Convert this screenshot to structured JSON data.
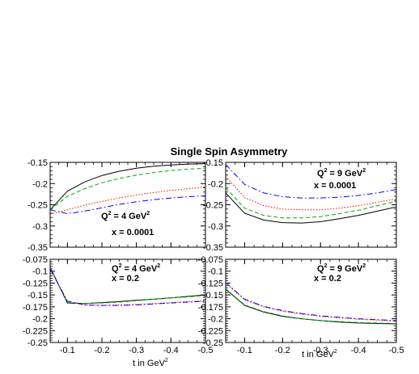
{
  "figure": {
    "title": "Single Spin Asymmetry",
    "xlabel": "t in GeV",
    "xlabel_sup": "2"
  },
  "chart_data": [
    {
      "type": "line",
      "annotation": {
        "line1": "Q",
        "sup": "2",
        "line1_rest": " = 4 GeV",
        "sup2": "2",
        "line2": "x = 0.0001"
      },
      "xlim": [
        -0.05,
        -0.5
      ],
      "ylim": [
        -0.35,
        -0.15
      ],
      "xticks": [],
      "yticks": [
        "-0.15",
        "-0.2",
        "-0.25",
        "-0.3",
        "-0.35"
      ],
      "ytick_values": [
        -0.15,
        -0.2,
        -0.25,
        -0.3,
        -0.35
      ],
      "series": [
        {
          "color": "#000000",
          "dash": "",
          "x": [
            -0.05,
            -0.1,
            -0.15,
            -0.2,
            -0.25,
            -0.3,
            -0.35,
            -0.4,
            -0.45,
            -0.5
          ],
          "y": [
            -0.262,
            -0.218,
            -0.196,
            -0.181,
            -0.171,
            -0.164,
            -0.159,
            -0.156,
            -0.154,
            -0.153
          ]
        },
        {
          "color": "#00aa00",
          "dash": "5,3",
          "x": [
            -0.05,
            -0.1,
            -0.15,
            -0.2,
            -0.25,
            -0.3,
            -0.35,
            -0.4,
            -0.45,
            -0.5
          ],
          "y": [
            -0.262,
            -0.23,
            -0.212,
            -0.198,
            -0.188,
            -0.18,
            -0.174,
            -0.169,
            -0.166,
            -0.164
          ]
        },
        {
          "color": "#ff0000",
          "dash": "1.5,2",
          "x": [
            -0.05,
            -0.1,
            -0.15,
            -0.2,
            -0.25,
            -0.3,
            -0.35,
            -0.4,
            -0.45,
            -0.5
          ],
          "y": [
            -0.272,
            -0.262,
            -0.251,
            -0.242,
            -0.234,
            -0.227,
            -0.221,
            -0.216,
            -0.212,
            -0.208
          ]
        },
        {
          "color": "#0000ff",
          "dash": "7,3,1.5,3",
          "x": [
            -0.05,
            -0.1,
            -0.15,
            -0.2,
            -0.25,
            -0.3,
            -0.35,
            -0.4,
            -0.45,
            -0.5
          ],
          "y": [
            -0.262,
            -0.271,
            -0.265,
            -0.257,
            -0.249,
            -0.243,
            -0.238,
            -0.234,
            -0.231,
            -0.229
          ]
        }
      ]
    },
    {
      "type": "line",
      "annotation": {
        "line1": "Q",
        "sup": "2",
        "line1_rest": " = 9 GeV",
        "sup2": "2",
        "line2": "x = 0.0001"
      },
      "xlim": [
        -0.05,
        -0.5
      ],
      "ylim": [
        -0.35,
        -0.15
      ],
      "xticks": [],
      "yticks": [
        "-0.15",
        "-0.2",
        "-0.25",
        "-0.3",
        "-0.35"
      ],
      "ytick_values": [
        -0.15,
        -0.2,
        -0.25,
        -0.3,
        -0.35
      ],
      "series": [
        {
          "color": "#000000",
          "dash": "",
          "x": [
            -0.05,
            -0.1,
            -0.15,
            -0.2,
            -0.25,
            -0.3,
            -0.35,
            -0.4,
            -0.45,
            -0.5
          ],
          "y": [
            -0.222,
            -0.27,
            -0.286,
            -0.292,
            -0.293,
            -0.29,
            -0.283,
            -0.275,
            -0.265,
            -0.255
          ]
        },
        {
          "color": "#00aa00",
          "dash": "5,3",
          "x": [
            -0.05,
            -0.1,
            -0.15,
            -0.2,
            -0.25,
            -0.3,
            -0.35,
            -0.4,
            -0.45,
            -0.5
          ],
          "y": [
            -0.21,
            -0.258,
            -0.275,
            -0.281,
            -0.281,
            -0.278,
            -0.271,
            -0.263,
            -0.252,
            -0.242
          ]
        },
        {
          "color": "#ff0000",
          "dash": "1.5,2",
          "x": [
            -0.05,
            -0.1,
            -0.15,
            -0.2,
            -0.25,
            -0.3,
            -0.35,
            -0.4,
            -0.45,
            -0.5
          ],
          "y": [
            -0.183,
            -0.233,
            -0.252,
            -0.26,
            -0.262,
            -0.262,
            -0.258,
            -0.252,
            -0.244,
            -0.236
          ]
        },
        {
          "color": "#0000ff",
          "dash": "7,3,1.5,3",
          "x": [
            -0.05,
            -0.1,
            -0.15,
            -0.2,
            -0.25,
            -0.3,
            -0.35,
            -0.4,
            -0.45,
            -0.5
          ],
          "y": [
            -0.155,
            -0.202,
            -0.222,
            -0.231,
            -0.234,
            -0.234,
            -0.232,
            -0.228,
            -0.222,
            -0.214
          ]
        }
      ]
    },
    {
      "type": "line",
      "annotation": {
        "line1": "Q",
        "sup": "2",
        "line1_rest": " = 4 GeV",
        "sup2": "2",
        "line2": "x = 0.2"
      },
      "xlim": [
        -0.05,
        -0.5
      ],
      "ylim": [
        -0.25,
        -0.075
      ],
      "xticks": [
        "-0.1",
        "-0.2",
        "-0.3",
        "-0.4",
        "-0.5"
      ],
      "xtick_values": [
        -0.1,
        -0.2,
        -0.3,
        -0.4,
        -0.5
      ],
      "yticks": [
        "-0.075",
        "-0.1",
        "-0.125",
        "-0.15",
        "-0.175",
        "-0.2",
        "-0.225",
        "-0.25"
      ],
      "ytick_values": [
        -0.075,
        -0.1,
        -0.125,
        -0.15,
        -0.175,
        -0.2,
        -0.225,
        -0.25
      ],
      "series": [
        {
          "color": "#000000",
          "dash": "",
          "x": [
            -0.05,
            -0.1,
            -0.15,
            -0.2,
            -0.25,
            -0.3,
            -0.35,
            -0.4,
            -0.45,
            -0.5
          ],
          "y": [
            -0.092,
            -0.167,
            -0.168,
            -0.166,
            -0.164,
            -0.161,
            -0.159,
            -0.156,
            -0.153,
            -0.15
          ]
        },
        {
          "color": "#00aa00",
          "dash": "5,3",
          "x": [
            -0.05,
            -0.1,
            -0.15,
            -0.2,
            -0.25,
            -0.3,
            -0.35,
            -0.4,
            -0.45,
            -0.5
          ],
          "y": [
            -0.093,
            -0.166,
            -0.168,
            -0.167,
            -0.165,
            -0.162,
            -0.159,
            -0.156,
            -0.154,
            -0.151
          ]
        },
        {
          "color": "#ff0000",
          "dash": "1.5,2",
          "x": [
            -0.05,
            -0.1,
            -0.15,
            -0.2,
            -0.25,
            -0.3,
            -0.35,
            -0.4,
            -0.45,
            -0.5
          ],
          "y": [
            -0.095,
            -0.163,
            -0.171,
            -0.172,
            -0.171,
            -0.17,
            -0.168,
            -0.166,
            -0.164,
            -0.162
          ]
        },
        {
          "color": "#0000ff",
          "dash": "7,3,1.5,3",
          "x": [
            -0.05,
            -0.1,
            -0.15,
            -0.2,
            -0.25,
            -0.3,
            -0.35,
            -0.4,
            -0.45,
            -0.5
          ],
          "y": [
            -0.095,
            -0.163,
            -0.171,
            -0.172,
            -0.172,
            -0.171,
            -0.169,
            -0.167,
            -0.165,
            -0.163
          ]
        }
      ]
    },
    {
      "type": "line",
      "annotation": {
        "line1": "Q",
        "sup": "2",
        "line1_rest": " = 9 GeV",
        "sup2": "2",
        "line2": "x = 0.2"
      },
      "xlim": [
        -0.05,
        -0.5
      ],
      "ylim": [
        -0.25,
        -0.075
      ],
      "xticks": [
        "-0.1",
        "-0.2",
        "-0.3",
        "-0.4",
        "-0.5"
      ],
      "xtick_values": [
        -0.1,
        -0.2,
        -0.3,
        -0.4,
        -0.5
      ],
      "yticks": [
        "-0.075",
        "-0.1",
        "-0.125",
        "-0.15",
        "-0.175",
        "-0.2",
        "-0.225",
        "-0.25"
      ],
      "ytick_values": [
        -0.075,
        -0.1,
        -0.125,
        -0.15,
        -0.175,
        -0.2,
        -0.225,
        -0.25
      ],
      "series": [
        {
          "color": "#000000",
          "dash": "",
          "x": [
            -0.05,
            -0.1,
            -0.15,
            -0.2,
            -0.25,
            -0.3,
            -0.35,
            -0.4,
            -0.45,
            -0.5
          ],
          "y": [
            -0.138,
            -0.172,
            -0.186,
            -0.195,
            -0.2,
            -0.204,
            -0.207,
            -0.209,
            -0.21,
            -0.211
          ]
        },
        {
          "color": "#00aa00",
          "dash": "5,3",
          "x": [
            -0.05,
            -0.1,
            -0.15,
            -0.2,
            -0.25,
            -0.3,
            -0.35,
            -0.4,
            -0.45,
            -0.5
          ],
          "y": [
            -0.137,
            -0.171,
            -0.185,
            -0.194,
            -0.2,
            -0.204,
            -0.206,
            -0.208,
            -0.209,
            -0.21
          ]
        },
        {
          "color": "#ff0000",
          "dash": "1.5,2",
          "x": [
            -0.05,
            -0.1,
            -0.15,
            -0.2,
            -0.25,
            -0.3,
            -0.35,
            -0.4,
            -0.45,
            -0.5
          ],
          "y": [
            -0.125,
            -0.16,
            -0.175,
            -0.184,
            -0.19,
            -0.195,
            -0.198,
            -0.201,
            -0.203,
            -0.205
          ]
        },
        {
          "color": "#0000ff",
          "dash": "7,3,1.5,3",
          "x": [
            -0.05,
            -0.1,
            -0.15,
            -0.2,
            -0.25,
            -0.3,
            -0.35,
            -0.4,
            -0.45,
            -0.5
          ],
          "y": [
            -0.124,
            -0.159,
            -0.174,
            -0.183,
            -0.189,
            -0.194,
            -0.197,
            -0.2,
            -0.202,
            -0.204
          ]
        }
      ]
    }
  ]
}
